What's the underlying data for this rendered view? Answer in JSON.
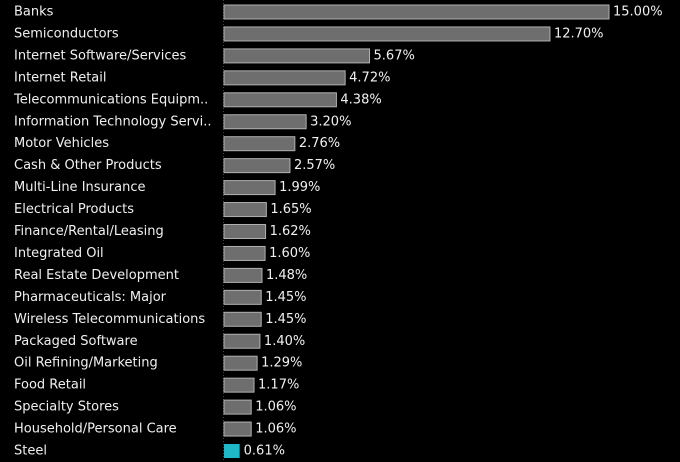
{
  "chart_data": {
    "type": "barh",
    "categories": [
      "Banks",
      "Semiconductors",
      "Internet Software/Services",
      "Internet Retail",
      "Telecommunications Equipm..",
      "Information Technology Servi..",
      "Motor Vehicles",
      "Cash & Other Products",
      "Multi-Line Insurance",
      "Electrical Products",
      "Finance/Rental/Leasing",
      "Integrated Oil",
      "Real Estate Development",
      "Pharmaceuticals: Major",
      "Wireless Telecommunications",
      "Packaged Software",
      "Oil Refining/Marketing",
      "Food Retail",
      "Specialty Stores",
      "Household/Personal Care",
      "Steel"
    ],
    "values": [
      15.0,
      12.7,
      5.67,
      4.72,
      4.38,
      3.2,
      2.76,
      2.57,
      1.99,
      1.65,
      1.62,
      1.6,
      1.48,
      1.45,
      1.45,
      1.4,
      1.29,
      1.17,
      1.06,
      1.06,
      0.61
    ],
    "value_labels": [
      "15.00%",
      "12.70%",
      "5.67%",
      "4.72%",
      "4.38%",
      "3.20%",
      "2.76%",
      "2.57%",
      "1.99%",
      "1.65%",
      "1.62%",
      "1.60%",
      "1.48%",
      "1.45%",
      "1.45%",
      "1.40%",
      "1.29%",
      "1.17%",
      "1.06%",
      "1.06%",
      "0.61%"
    ],
    "colors": [
      "#6e6e6e",
      "#6e6e6e",
      "#6e6e6e",
      "#6e6e6e",
      "#6e6e6e",
      "#6e6e6e",
      "#6e6e6e",
      "#6e6e6e",
      "#6e6e6e",
      "#6e6e6e",
      "#6e6e6e",
      "#6e6e6e",
      "#6e6e6e",
      "#6e6e6e",
      "#6e6e6e",
      "#6e6e6e",
      "#6e6e6e",
      "#6e6e6e",
      "#6e6e6e",
      "#6e6e6e",
      "#1fb8c8"
    ]
  }
}
